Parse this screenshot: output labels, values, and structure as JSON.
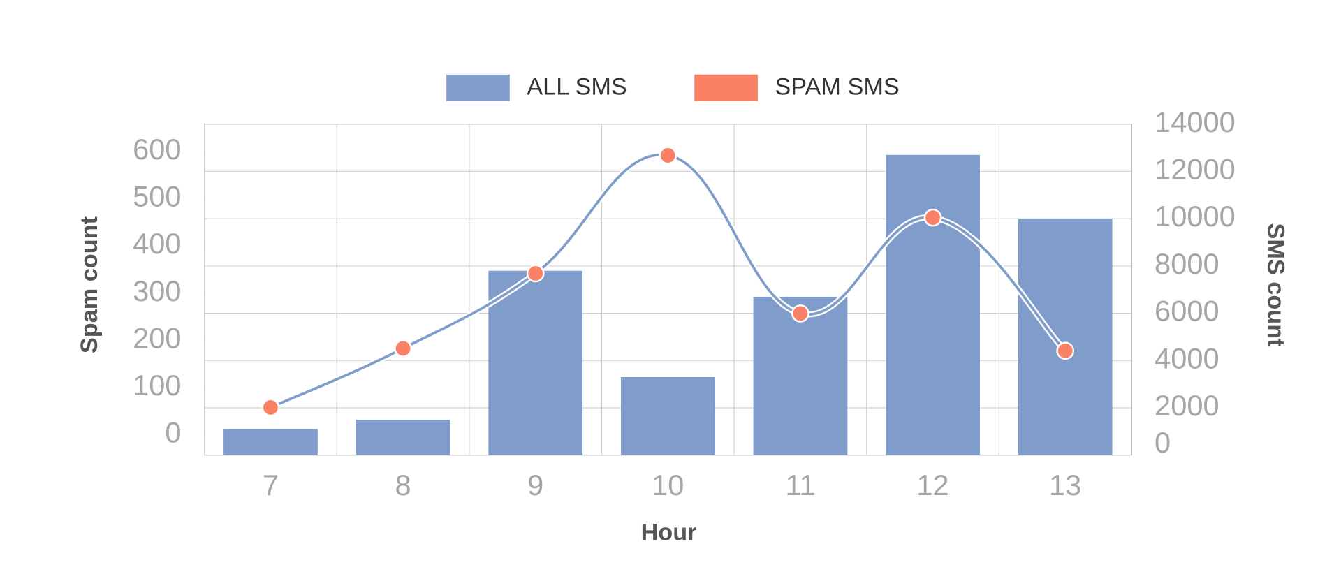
{
  "chart_data": {
    "type": "combo",
    "categories": [
      "7",
      "8",
      "9",
      "10",
      "11",
      "12",
      "13"
    ],
    "x_label": "Hour",
    "y_label": "Spam count",
    "y2_label": "SMS count",
    "ylim": [
      -43,
      658
    ],
    "yticks": [
      0,
      100,
      200,
      300,
      400,
      500,
      600
    ],
    "y2lim": [
      0,
      14000
    ],
    "y2ticks": [
      0,
      2000,
      4000,
      6000,
      8000,
      10000,
      12000,
      14000
    ],
    "grid": true,
    "legend": "top",
    "series": [
      {
        "name": "ALL SMS",
        "type": "bar",
        "axis": "y2",
        "color": "#7f9ccb",
        "values": [
          1100,
          1500,
          7800,
          3300,
          6700,
          12700,
          10000
        ]
      },
      {
        "name": "SPAM SMS",
        "type": "line",
        "axis": "y",
        "color": "#fa8066",
        "line_color": "#7f9ccb",
        "values": [
          58,
          183,
          342,
          592,
          257,
          460,
          178
        ]
      }
    ]
  }
}
